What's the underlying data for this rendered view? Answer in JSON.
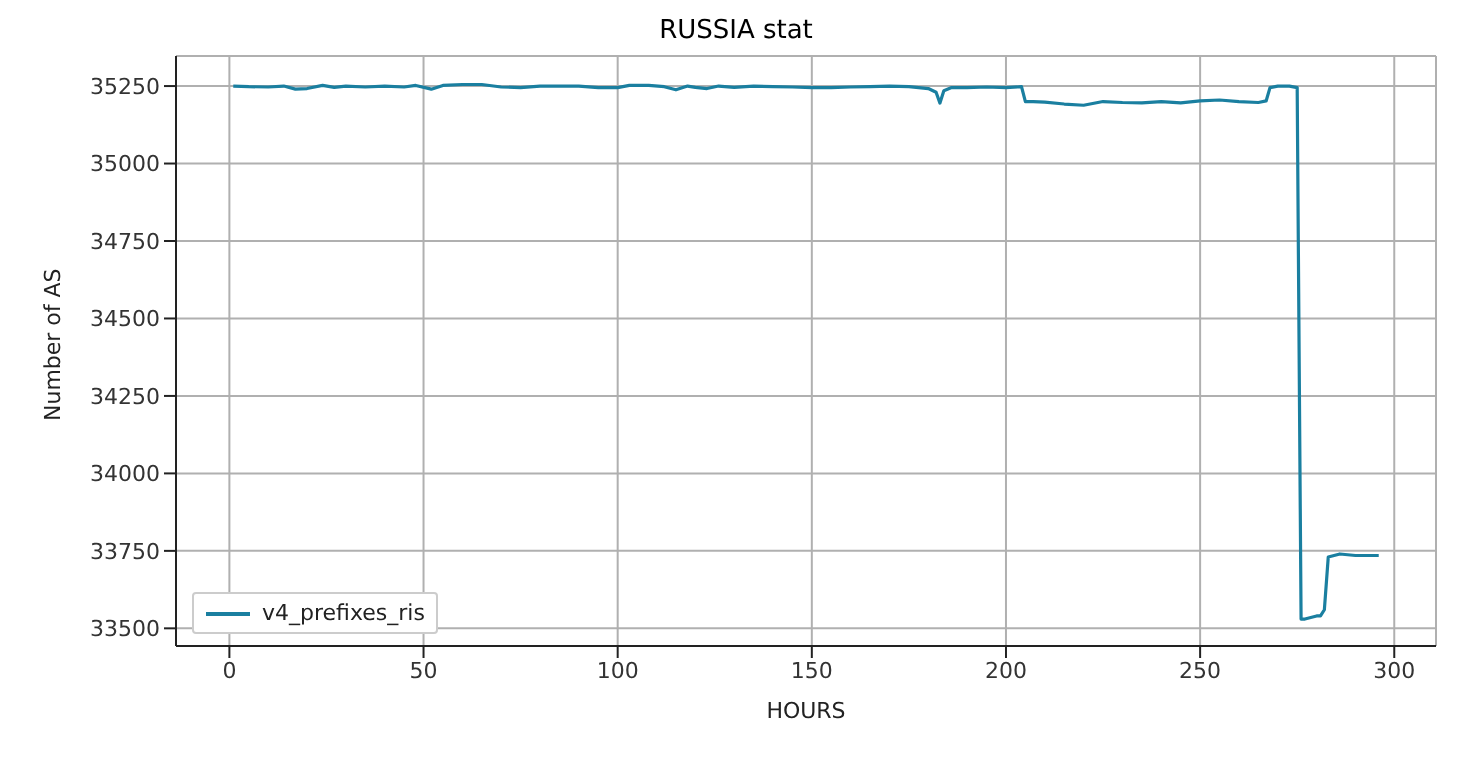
{
  "chart_data": {
    "type": "line",
    "title": "RUSSIA stat",
    "xlabel": "HOURS",
    "ylabel": "Number of AS",
    "xlim": [
      -13.75,
      310.75
    ],
    "xticks": [
      0,
      50,
      100,
      150,
      200,
      250,
      300
    ],
    "ylim": [
      33443,
      35347
    ],
    "yticks": [
      33500,
      33750,
      34000,
      34250,
      34500,
      34750,
      35000,
      35250
    ],
    "grid": true,
    "legend": "bottom left",
    "series": [
      {
        "name": "v4_prefixes_ris",
        "color": "#1a7fa0",
        "x": [
          1,
          5,
          10,
          14,
          17,
          20,
          24,
          27,
          30,
          35,
          40,
          45,
          48,
          52,
          55,
          60,
          65,
          70,
          75,
          80,
          85,
          90,
          95,
          100,
          103,
          108,
          112,
          115,
          118,
          120,
          123,
          126,
          130,
          135,
          140,
          145,
          150,
          155,
          160,
          165,
          170,
          175,
          180,
          182,
          183,
          184,
          186,
          190,
          195,
          200,
          204,
          205,
          207,
          210,
          215,
          220,
          225,
          230,
          235,
          240,
          245,
          250,
          255,
          260,
          265,
          267,
          268,
          270,
          273,
          275,
          276,
          277,
          280,
          281,
          282,
          283,
          286,
          290,
          296
        ],
        "values": [
          35250,
          35248,
          35247,
          35250,
          35240,
          35242,
          35252,
          35246,
          35250,
          35247,
          35250,
          35247,
          35252,
          35240,
          35252,
          35255,
          35255,
          35247,
          35245,
          35250,
          35250,
          35250,
          35245,
          35245,
          35252,
          35252,
          35248,
          35238,
          35250,
          35246,
          35242,
          35250,
          35246,
          35250,
          35248,
          35247,
          35245,
          35245,
          35247,
          35248,
          35250,
          35248,
          35242,
          35230,
          35195,
          35235,
          35245,
          35245,
          35247,
          35245,
          35248,
          35200,
          35200,
          35198,
          35192,
          35188,
          35200,
          35197,
          35196,
          35200,
          35196,
          35202,
          35205,
          35200,
          35197,
          35202,
          35245,
          35250,
          35250,
          35245,
          33530,
          33530,
          33540,
          33540,
          33560,
          33730,
          33740,
          33735,
          33735
        ]
      }
    ]
  }
}
